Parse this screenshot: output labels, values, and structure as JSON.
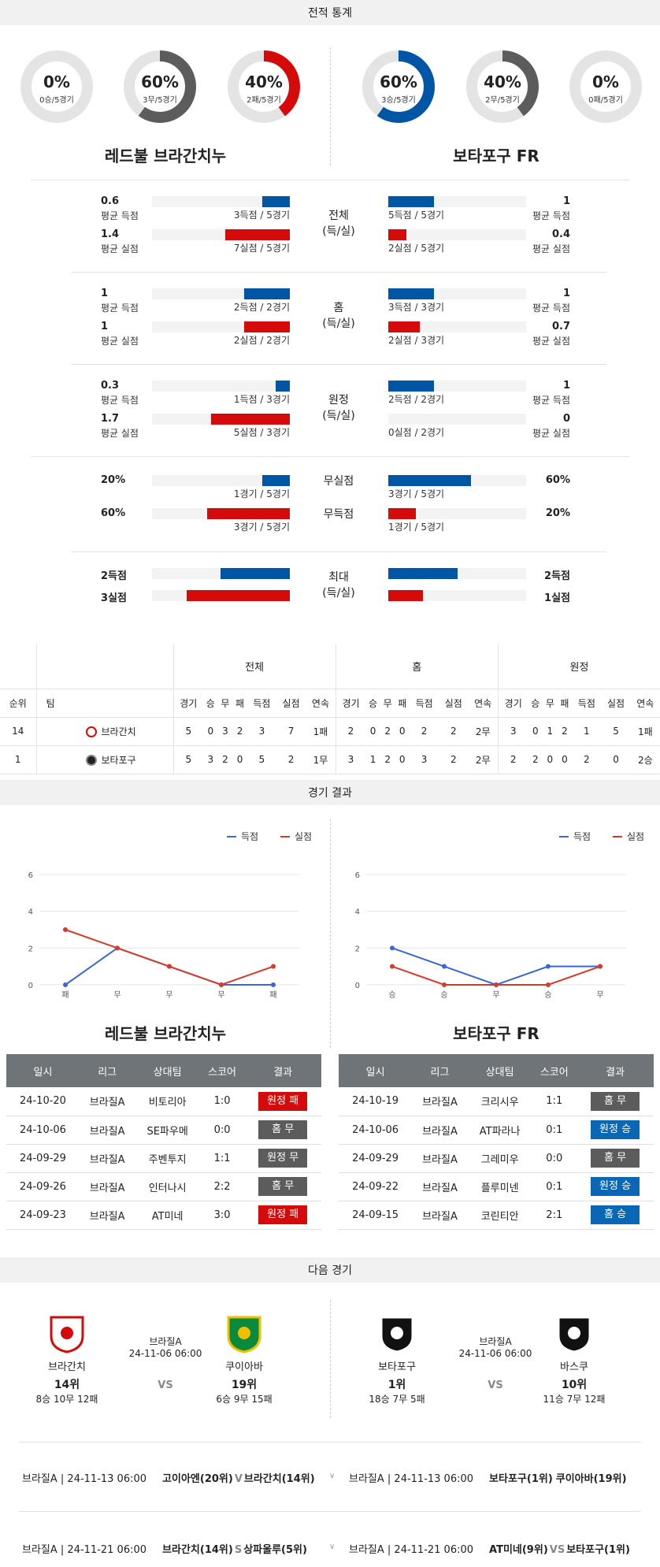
{
  "sections": {
    "record": "전적 통계",
    "results": "경기 결과",
    "next": "다음 경기"
  },
  "home_team": {
    "name": "레드불 브라간치누",
    "donuts": [
      {
        "pct": "0%",
        "sub": "0승/5경기",
        "value": 0,
        "color": "#0055a5"
      },
      {
        "pct": "60%",
        "sub": "3무/5경기",
        "value": 60,
        "color": "#5c5c5c"
      },
      {
        "pct": "40%",
        "sub": "2패/5경기",
        "value": 40,
        "color": "#d50b0b"
      }
    ]
  },
  "away_team": {
    "name": "보타포구 FR",
    "donuts": [
      {
        "pct": "60%",
        "sub": "3승/5경기",
        "value": 60,
        "color": "#0055a5"
      },
      {
        "pct": "40%",
        "sub": "2무/5경기",
        "value": 40,
        "color": "#5c5c5c"
      },
      {
        "pct": "0%",
        "sub": "0패/5경기",
        "value": 0,
        "color": "#d50b0b"
      }
    ]
  },
  "stat_groups": [
    {
      "center": [
        "전체",
        "(득/실)"
      ],
      "rows": [
        {
          "l_val": "0.6",
          "l_lab": "평균 득점",
          "l_txt": "3득점 / 5경기",
          "l_frac": 0.2,
          "color": "blue",
          "r_val": "1",
          "r_lab": "평균 득점",
          "r_txt": "5득점 / 5경기",
          "r_frac": 0.33
        },
        {
          "l_val": "1.4",
          "l_lab": "평균 실점",
          "l_txt": "7실점 / 5경기",
          "l_frac": 0.47,
          "color": "red",
          "r_val": "0.4",
          "r_lab": "평균 실점",
          "r_txt": "2실점 / 5경기",
          "r_frac": 0.13
        }
      ]
    },
    {
      "center": [
        "홈",
        "(득/실)"
      ],
      "rows": [
        {
          "l_val": "1",
          "l_lab": "평균 득점",
          "l_txt": "2득점 / 2경기",
          "l_frac": 0.33,
          "color": "blue",
          "r_val": "1",
          "r_lab": "평균 득점",
          "r_txt": "3득점 / 3경기",
          "r_frac": 0.33
        },
        {
          "l_val": "1",
          "l_lab": "평균 실점",
          "l_txt": "2실점 / 2경기",
          "l_frac": 0.33,
          "color": "red",
          "r_val": "0.7",
          "r_lab": "평균 실점",
          "r_txt": "2실점 / 3경기",
          "r_frac": 0.23
        }
      ]
    },
    {
      "center": [
        "원정",
        "(득/실)"
      ],
      "rows": [
        {
          "l_val": "0.3",
          "l_lab": "평균 득점",
          "l_txt": "1득점 / 3경기",
          "l_frac": 0.1,
          "color": "blue",
          "r_val": "1",
          "r_lab": "평균 득점",
          "r_txt": "2득점 / 2경기",
          "r_frac": 0.33
        },
        {
          "l_val": "1.7",
          "l_lab": "평균 실점",
          "l_txt": "5실점 / 3경기",
          "l_frac": 0.57,
          "color": "red",
          "r_val": "0",
          "r_lab": "평균 실점",
          "r_txt": "0실점 / 2경기",
          "r_frac": 0.0
        }
      ]
    }
  ],
  "clean_sheet": {
    "rows": [
      {
        "center": "무실점",
        "l_val": "20%",
        "l_txt": "1경기 / 5경기",
        "l_frac": 0.2,
        "color": "blue",
        "r_val": "60%",
        "r_txt": "3경기 / 5경기",
        "r_frac": 0.6
      },
      {
        "center": "무득점",
        "l_val": "60%",
        "l_txt": "3경기 / 5경기",
        "l_frac": 0.6,
        "color": "red",
        "r_val": "20%",
        "r_txt": "1경기 / 5경기",
        "r_frac": 0.2
      }
    ]
  },
  "max_group": {
    "center": [
      "최대",
      "(득/실)"
    ],
    "rows": [
      {
        "l_val": "2득점",
        "l_frac": 0.5,
        "color": "blue",
        "r_val": "2득점",
        "r_frac": 0.5
      },
      {
        "l_val": "3실점",
        "l_frac": 0.75,
        "color": "red",
        "r_val": "1실점",
        "r_frac": 0.25
      }
    ]
  },
  "standings": {
    "groups": [
      "전체",
      "홈",
      "원정"
    ],
    "head_rank": "순위",
    "head_team": "팀",
    "sub_cols": [
      "경기",
      "승",
      "무",
      "패",
      "득점",
      "실점",
      "연속"
    ],
    "rows": [
      {
        "rank": "14",
        "team": "브라간치",
        "logo": "redbull-logo-icon",
        "all": [
          "5",
          "0",
          "3",
          "2",
          "3",
          "7",
          "1패"
        ],
        "home": [
          "2",
          "0",
          "2",
          "0",
          "2",
          "2",
          "2무"
        ],
        "away": [
          "3",
          "0",
          "1",
          "2",
          "1",
          "5",
          "1패"
        ]
      },
      {
        "rank": "1",
        "team": "보타포구",
        "logo": "botafogo-logo-icon",
        "all": [
          "5",
          "3",
          "2",
          "0",
          "5",
          "2",
          "1무"
        ],
        "home": [
          "3",
          "1",
          "2",
          "0",
          "3",
          "2",
          "2무"
        ],
        "away": [
          "2",
          "2",
          "0",
          "0",
          "2",
          "0",
          "2승"
        ]
      }
    ]
  },
  "chart_data": [
    {
      "type": "line",
      "categories": [
        "패",
        "무",
        "무",
        "무",
        "패"
      ],
      "series": [
        {
          "name": "득점",
          "values": [
            0,
            2,
            1,
            0,
            0
          ],
          "color": "#3a66d6"
        },
        {
          "name": "실점",
          "values": [
            3,
            2,
            1,
            0,
            1
          ],
          "color": "#d83a2a"
        }
      ],
      "yticks": [
        0,
        2,
        4,
        6
      ],
      "ylim": [
        0,
        6
      ]
    },
    {
      "type": "line",
      "categories": [
        "승",
        "승",
        "무",
        "승",
        "무"
      ],
      "series": [
        {
          "name": "득점",
          "values": [
            2,
            1,
            0,
            1,
            1
          ],
          "color": "#3a66d6"
        },
        {
          "name": "실점",
          "values": [
            1,
            0,
            0,
            0,
            1
          ],
          "color": "#d83a2a"
        }
      ],
      "yticks": [
        0,
        2,
        4,
        6
      ],
      "ylim": [
        0,
        6
      ]
    }
  ],
  "results_headers": [
    "일시",
    "리그",
    "상대팀",
    "스코어",
    "결과"
  ],
  "home_results": [
    {
      "date": "24-10-20",
      "league": "브라질A",
      "opp": "비토리아",
      "score": "1:0",
      "result": "원정 패",
      "cls": "b-red"
    },
    {
      "date": "24-10-06",
      "league": "브라질A",
      "opp": "SE파우메",
      "score": "0:0",
      "result": "홈 무",
      "cls": "b-gray"
    },
    {
      "date": "24-09-29",
      "league": "브라질A",
      "opp": "주벤투지",
      "score": "1:1",
      "result": "원정 무",
      "cls": "b-gray"
    },
    {
      "date": "24-09-26",
      "league": "브라질A",
      "opp": "인터나시",
      "score": "2:2",
      "result": "홈 무",
      "cls": "b-gray"
    },
    {
      "date": "24-09-23",
      "league": "브라질A",
      "opp": "AT미네",
      "score": "3:0",
      "result": "원정 패",
      "cls": "b-red"
    }
  ],
  "away_results": [
    {
      "date": "24-10-19",
      "league": "브라질A",
      "opp": "크리시우",
      "score": "1:1",
      "result": "홈 무",
      "cls": "b-gray"
    },
    {
      "date": "24-10-06",
      "league": "브라질A",
      "opp": "AT파라나",
      "score": "0:1",
      "result": "원정 승",
      "cls": "b-blue"
    },
    {
      "date": "24-09-29",
      "league": "브라질A",
      "opp": "그레미우",
      "score": "0:0",
      "result": "홈 무",
      "cls": "b-gray"
    },
    {
      "date": "24-09-22",
      "league": "브라질A",
      "opp": "플루미넨",
      "score": "0:1",
      "result": "원정 승",
      "cls": "b-blue"
    },
    {
      "date": "24-09-15",
      "league": "브라질A",
      "opp": "코린티안",
      "score": "2:1",
      "result": "홈 승",
      "cls": "b-blue"
    }
  ],
  "next_matches": [
    {
      "league": "브라질A",
      "datetime": "24-11-06 06:00",
      "vs": "VS",
      "home": {
        "name": "브라간치",
        "rank": "14위",
        "record": "8승 10무 12패",
        "logo": "redbull-logo-icon"
      },
      "away": {
        "name": "쿠이아바",
        "rank": "19위",
        "record": "6승 9무 15패",
        "logo": "cuiaba-logo-icon"
      }
    },
    {
      "league": "브라질A",
      "datetime": "24-11-06 06:00",
      "vs": "VS",
      "home": {
        "name": "보타포구",
        "rank": "1위",
        "record": "18승 7무 5패",
        "logo": "botafogo-logo-icon"
      },
      "away": {
        "name": "바스쿠",
        "rank": "10위",
        "record": "11승 7무 12패",
        "logo": "vasco-logo-icon"
      }
    }
  ],
  "fixtures": [
    {
      "left": {
        "info": "브라질A | 24-11-13 06:00",
        "t1": "고이아엔(20위)",
        "vs": "V",
        "t2": "브라간치(14위)"
      },
      "right": {
        "info": "브라질A | 24-11-13 06:00",
        "t1": "보타포구(1위)",
        "vs": "",
        "t2": "쿠이아바(19위)"
      }
    },
    {
      "left": {
        "info": "브라질A | 24-11-21 06:00",
        "t1": "브라간치(14위)",
        "vs": "S",
        "t2": "상파울루(5위)"
      },
      "right": {
        "info": "브라질A | 24-11-21 06:00",
        "t1": "AT미네(9위)",
        "vs": "VS",
        "t2": "보타포구(1위)"
      }
    }
  ]
}
